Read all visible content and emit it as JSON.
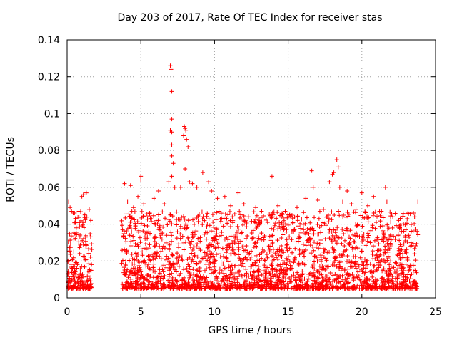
{
  "chart_data": {
    "type": "scatter",
    "title": "Day 203 of 2017, Rate Of TEC Index for receiver stas",
    "xlabel": "GPS time / hours",
    "ylabel": "ROTI / TECUs",
    "xlim": [
      0,
      25
    ],
    "ylim": [
      0,
      0.14
    ],
    "x_ticks": [
      "0",
      "5",
      "10",
      "15",
      "20",
      "25"
    ],
    "y_ticks": [
      "0",
      "0.02",
      "0.04",
      "0.06",
      "0.08",
      "0.1",
      "0.12",
      "0.14"
    ],
    "grid": true,
    "marker": "+",
    "color": "#ff0000",
    "data_gap_hours": [
      1.7,
      3.7
    ],
    "series": [
      {
        "points": [
          [
            0.1,
            0.052
          ],
          [
            0.2,
            0.049
          ],
          [
            0.3,
            0.047
          ],
          [
            0.5,
            0.046
          ],
          [
            0.6,
            0.043
          ],
          [
            0.8,
            0.047
          ],
          [
            1.0,
            0.055
          ],
          [
            1.1,
            0.056
          ],
          [
            1.2,
            0.045
          ],
          [
            1.3,
            0.057
          ],
          [
            1.5,
            0.048
          ],
          [
            1.6,
            0.042
          ],
          [
            3.9,
            0.062
          ],
          [
            4.1,
            0.052
          ],
          [
            4.3,
            0.061
          ],
          [
            4.5,
            0.049
          ],
          [
            4.8,
            0.055
          ],
          [
            5.0,
            0.066
          ],
          [
            5.0,
            0.064
          ],
          [
            5.2,
            0.051
          ],
          [
            5.6,
            0.046
          ],
          [
            5.9,
            0.054
          ],
          [
            6.2,
            0.058
          ],
          [
            6.6,
            0.051
          ],
          [
            6.9,
            0.063
          ],
          [
            7.0,
            0.126
          ],
          [
            7.05,
            0.124
          ],
          [
            7.1,
            0.112
          ],
          [
            7.1,
            0.097
          ],
          [
            7.0,
            0.091
          ],
          [
            7.1,
            0.09
          ],
          [
            7.1,
            0.083
          ],
          [
            7.1,
            0.077
          ],
          [
            7.2,
            0.073
          ],
          [
            7.1,
            0.066
          ],
          [
            7.3,
            0.06
          ],
          [
            7.7,
            0.06
          ],
          [
            7.9,
            0.088
          ],
          [
            7.95,
            0.093
          ],
          [
            8.0,
            0.092
          ],
          [
            8.05,
            0.091
          ],
          [
            8.1,
            0.086
          ],
          [
            8.2,
            0.082
          ],
          [
            8.0,
            0.07
          ],
          [
            8.3,
            0.063
          ],
          [
            8.5,
            0.062
          ],
          [
            8.8,
            0.06
          ],
          [
            9.2,
            0.068
          ],
          [
            9.6,
            0.063
          ],
          [
            9.8,
            0.058
          ],
          [
            10.2,
            0.054
          ],
          [
            10.3,
            0.047
          ],
          [
            10.7,
            0.055
          ],
          [
            11.1,
            0.05
          ],
          [
            11.6,
            0.057
          ],
          [
            12.0,
            0.051
          ],
          [
            12.3,
            0.044
          ],
          [
            12.8,
            0.049
          ],
          [
            13.2,
            0.047
          ],
          [
            13.9,
            0.066
          ],
          [
            14.3,
            0.05
          ],
          [
            14.8,
            0.047
          ],
          [
            15.1,
            0.045
          ],
          [
            15.6,
            0.049
          ],
          [
            16.2,
            0.054
          ],
          [
            16.6,
            0.069
          ],
          [
            16.7,
            0.06
          ],
          [
            17.0,
            0.053
          ],
          [
            17.4,
            0.048
          ],
          [
            17.8,
            0.063
          ],
          [
            18.0,
            0.067
          ],
          [
            18.1,
            0.068
          ],
          [
            18.3,
            0.075
          ],
          [
            18.4,
            0.071
          ],
          [
            18.5,
            0.06
          ],
          [
            18.7,
            0.052
          ],
          [
            19.0,
            0.058
          ],
          [
            19.3,
            0.051
          ],
          [
            19.6,
            0.048
          ],
          [
            20.0,
            0.057
          ],
          [
            20.4,
            0.05
          ],
          [
            20.8,
            0.055
          ],
          [
            21.2,
            0.047
          ],
          [
            21.6,
            0.06
          ],
          [
            21.7,
            0.052
          ],
          [
            22.1,
            0.044
          ],
          [
            22.5,
            0.042
          ],
          [
            23.0,
            0.037
          ],
          [
            23.5,
            0.046
          ],
          [
            23.8,
            0.052
          ]
        ]
      }
    ]
  }
}
